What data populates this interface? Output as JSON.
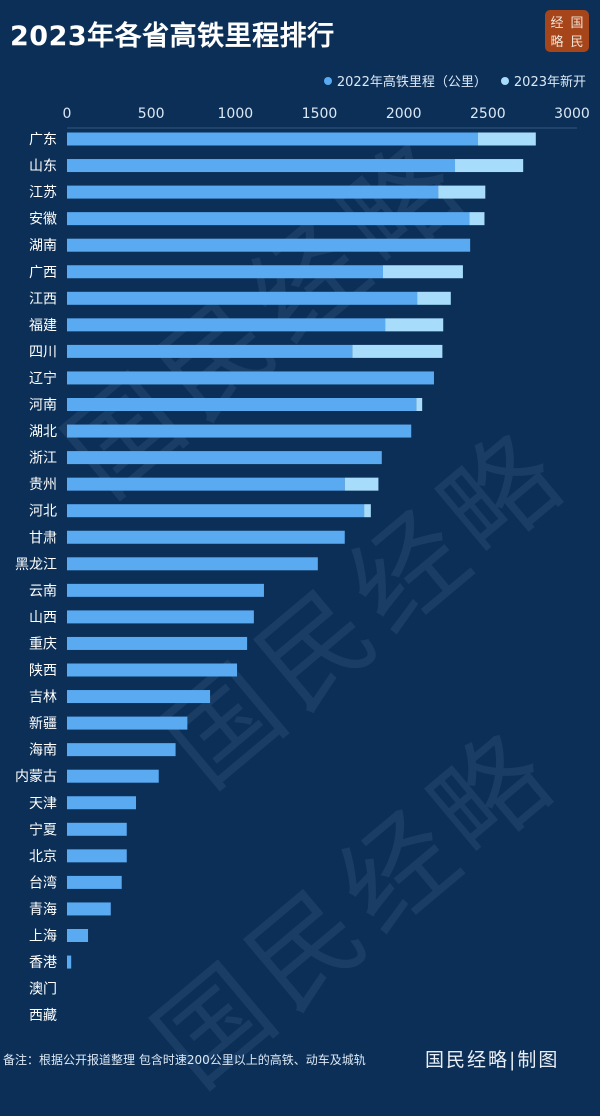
{
  "title": "2023年各省高铁里程排行",
  "logo_text": [
    "经",
    "国",
    "略",
    "民"
  ],
  "footnote": "备注：根据公开报道整理 包含时速200公里以上的高铁、动车及城轨",
  "brand": "国民经略|制图",
  "watermark": "国民经略",
  "colors": {
    "base": "#5aaaf2",
    "new": "#a8dcfb",
    "background": "#0b2f57"
  },
  "chart_data": {
    "type": "bar",
    "orientation": "horizontal",
    "stacked": true,
    "title": "2023年各省高铁里程排行",
    "xlim": [
      0,
      3000
    ],
    "xticks": [
      0,
      500,
      1000,
      1500,
      2000,
      2500,
      3000
    ],
    "legend_position": "top-right",
    "categories": [
      "广东",
      "山东",
      "江苏",
      "安徽",
      "湖南",
      "广西",
      "江西",
      "福建",
      "四川",
      "辽宁",
      "河南",
      "湖北",
      "浙江",
      "贵州",
      "河北",
      "甘肃",
      "黑龙江",
      "云南",
      "山西",
      "重庆",
      "陕西",
      "吉林",
      "新疆",
      "海南",
      "内蒙古",
      "天津",
      "宁夏",
      "北京",
      "台湾",
      "青海",
      "上海",
      "香港",
      "澳门",
      "西藏"
    ],
    "series": [
      {
        "name": "2022年高铁里程（公里）",
        "values": [
          2440,
          2305,
          2205,
          2390,
          2395,
          1877,
          2080,
          1890,
          1695,
          2180,
          2075,
          2045,
          1870,
          1650,
          1765,
          1650,
          1490,
          1170,
          1110,
          1070,
          1010,
          850,
          715,
          645,
          545,
          410,
          355,
          355,
          325,
          260,
          125,
          25,
          0,
          0
        ]
      },
      {
        "name": "2023年新开",
        "values": [
          345,
          405,
          280,
          90,
          0,
          475,
          200,
          345,
          535,
          0,
          35,
          0,
          0,
          200,
          40,
          0,
          0,
          0,
          0,
          0,
          0,
          0,
          0,
          0,
          0,
          0,
          0,
          0,
          0,
          0,
          0,
          0,
          0,
          0
        ]
      }
    ]
  }
}
